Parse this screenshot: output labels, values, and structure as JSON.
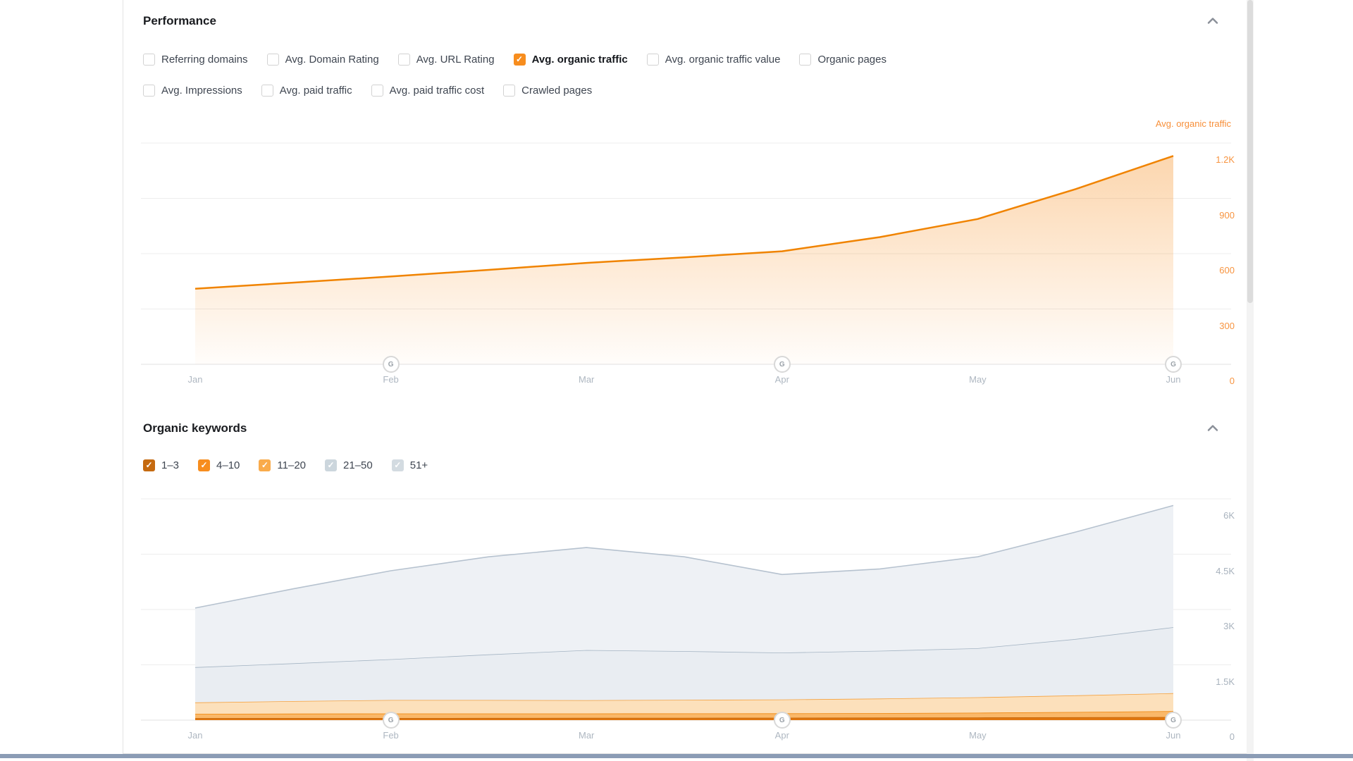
{
  "performance_panel": {
    "title": "Performance",
    "collapse_icon": "chevron-up",
    "metric_checkboxes": [
      {
        "label": "Referring domains",
        "checked": false
      },
      {
        "label": "Avg. Domain Rating",
        "checked": false
      },
      {
        "label": "Avg. URL Rating",
        "checked": false
      },
      {
        "label": "Avg. organic traffic",
        "checked": true,
        "checkbox_color": "#f78d1e"
      },
      {
        "label": "Avg. organic traffic value",
        "checked": false
      },
      {
        "label": "Organic pages",
        "checked": false
      },
      {
        "label": "Avg. Impressions",
        "checked": false
      },
      {
        "label": "Avg. paid traffic",
        "checked": false
      },
      {
        "label": "Avg. paid traffic cost",
        "checked": false
      },
      {
        "label": "Crawled pages",
        "checked": false
      }
    ]
  },
  "organic_keywords_panel": {
    "title": "Organic keywords",
    "collapse_icon": "chevron-up",
    "position_checkboxes": [
      {
        "label": "1–3",
        "checked": true,
        "checkbox_color": "#c56a10"
      },
      {
        "label": "4–10",
        "checked": true,
        "checkbox_color": "#f78d1e"
      },
      {
        "label": "11–20",
        "checked": true,
        "checkbox_color": "#f9ab4b"
      },
      {
        "label": "21–50",
        "checked": true,
        "checkbox_color": "#ccd6dd"
      },
      {
        "label": "51+",
        "checked": true,
        "checkbox_color": "#d3dbe1"
      }
    ]
  },
  "chart_data": [
    {
      "type": "area",
      "title": "Performance",
      "axis_title_right": "Avg. organic traffic",
      "categories": [
        "Jan",
        "Feb",
        "Mar",
        "Apr",
        "May",
        "Jun"
      ],
      "ylim": [
        0,
        1200
      ],
      "ytick_values": [
        1200,
        900,
        600,
        300,
        0
      ],
      "ytick_labels": [
        "1.2K",
        "900",
        "600",
        "300",
        "0"
      ],
      "grid": "horizontal",
      "legend_position": "top-right",
      "event_markers": [
        "Feb",
        "Apr",
        "Jun"
      ],
      "marker_glyph": "G",
      "series": [
        {
          "name": "Avg. organic traffic",
          "color": "#f08300",
          "values": [
            410,
            476,
            550,
            613,
            788,
            1130
          ],
          "samples_half_month": [
            410,
            443,
            476,
            512,
            550,
            580,
            613,
            690,
            788,
            950,
            1130
          ]
        }
      ]
    },
    {
      "type": "area",
      "title": "Organic keywords",
      "stacked": true,
      "categories": [
        "Jan",
        "Feb",
        "Mar",
        "Apr",
        "May",
        "Jun"
      ],
      "ylim": [
        0,
        6000
      ],
      "ytick_values": [
        6000,
        4500,
        3000,
        1500,
        0
      ],
      "ytick_labels": [
        "6K",
        "4.5K",
        "3K",
        "1.5K",
        "0"
      ],
      "grid": "horizontal",
      "event_markers": [
        "Feb",
        "Apr",
        "Jun"
      ],
      "marker_glyph": "G",
      "series": [
        {
          "name": "1–3",
          "line_color": "#c4660a",
          "fill_color": "#e0760f",
          "values": [
            55,
            58,
            62,
            65,
            72,
            85
          ],
          "samples_half_month": [
            55,
            57,
            58,
            60,
            62,
            63,
            65,
            68,
            72,
            78,
            85
          ]
        },
        {
          "name": "4–10",
          "line_color": "#ef8407",
          "fill_color": "#fab869",
          "values": [
            115,
            122,
            118,
            118,
            128,
            160
          ],
          "samples_half_month": [
            115,
            118,
            122,
            120,
            118,
            119,
            118,
            122,
            128,
            142,
            160
          ]
        },
        {
          "name": "11–20",
          "line_color": "#f5a13e",
          "fill_color": "#fce0bb",
          "values": [
            310,
            365,
            360,
            377,
            420,
            485
          ],
          "samples_half_month": [
            310,
            340,
            365,
            365,
            360,
            368,
            377,
            395,
            420,
            450,
            485
          ]
        },
        {
          "name": "21–50",
          "line_color": "#a4b4c3",
          "fill_color": "#e9edf2",
          "values": [
            955,
            1105,
            1360,
            1270,
            1330,
            1790
          ],
          "samples_half_month": [
            955,
            1025,
            1105,
            1235,
            1360,
            1320,
            1270,
            1295,
            1330,
            1530,
            1790
          ]
        },
        {
          "name": "51+",
          "line_color": "#b6c2cf",
          "fill_color": "#eef1f5",
          "values": [
            1605,
            2400,
            2780,
            2120,
            2480,
            3300
          ],
          "samples_half_month": [
            1605,
            2020,
            2400,
            2650,
            2780,
            2560,
            2120,
            2220,
            2480,
            2900,
            3300
          ]
        }
      ]
    }
  ]
}
